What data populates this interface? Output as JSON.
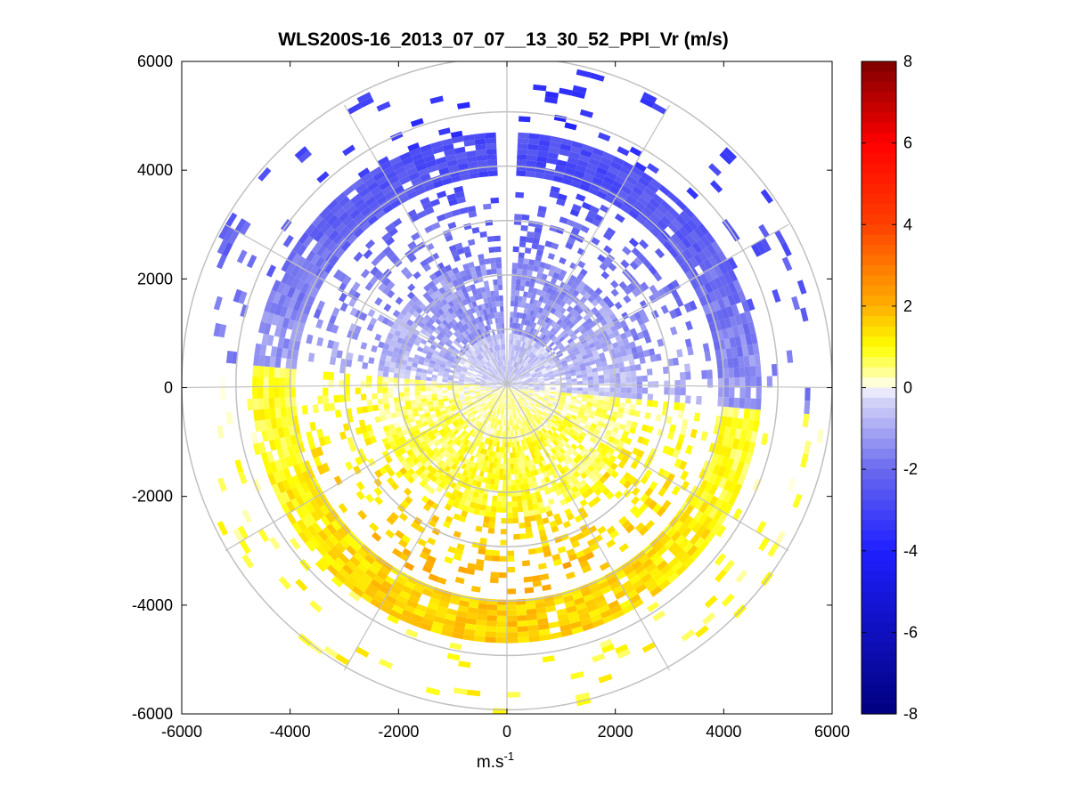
{
  "chart_data": {
    "type": "heatmap",
    "subtype": "polar-ppi",
    "title": "WLS200S-16_2013_07_07__13_30_52_PPI_Vr (m/s)",
    "xlabel": "m.s",
    "xlabel_sup": "-1",
    "ylabel": "",
    "xlim": [
      -6000,
      6000
    ],
    "ylim": [
      -6000,
      6000
    ],
    "xticks": [
      -6000,
      -4000,
      -2000,
      0,
      2000,
      4000,
      6000
    ],
    "yticks": [
      6000,
      4000,
      2000,
      0,
      -2000,
      -4000,
      -6000
    ],
    "xtick_labels": [
      "-6000",
      "-4000",
      "-2000",
      "0",
      "2000",
      "4000",
      "6000"
    ],
    "ytick_labels": [
      "6000",
      "4000",
      "2000",
      "0",
      "-2000",
      "-4000",
      "-6000"
    ],
    "grid_ring_radii": [
      1000,
      2000,
      3000,
      4000,
      5000,
      6000
    ],
    "grid_spoke_angles_deg": [
      0,
      30,
      60,
      90,
      120,
      150,
      180,
      210,
      240,
      270,
      300,
      330
    ],
    "colorbar": {
      "range": [
        -8,
        8
      ],
      "ticks": [
        8,
        6,
        4,
        2,
        0,
        -2,
        -4,
        -6,
        -8
      ],
      "tick_labels": [
        "8",
        "6",
        "4",
        "2",
        "0",
        "-2",
        "-4",
        "-6",
        "-8"
      ],
      "colormap_stops": [
        {
          "v": -8,
          "color": "#00007f"
        },
        {
          "v": -4,
          "color": "#1f1fff"
        },
        {
          "v": -2,
          "color": "#6a6aef"
        },
        {
          "v": -0.2,
          "color": "#dcdcf8"
        },
        {
          "v": 0,
          "color": "#ffffff"
        },
        {
          "v": 0.2,
          "color": "#ffffc0"
        },
        {
          "v": 1,
          "color": "#ffff00"
        },
        {
          "v": 2,
          "color": "#ffb000"
        },
        {
          "v": 4,
          "color": "#ff4000"
        },
        {
          "v": 6,
          "color": "#ff0000"
        },
        {
          "v": 8,
          "color": "#7f0000"
        }
      ]
    },
    "data_description": "Radial velocity Vr (m/s) on a polar grid; range gates 100-6000 m, azimuth beams every 2 deg",
    "data_model": {
      "bands": [
        {
          "r": [
            0,
            1000
          ],
          "north_half_vr": -0.6,
          "south_half_vr": 0.4,
          "coverage": 1.0
        },
        {
          "r": [
            1000,
            2400
          ],
          "north_half_vr": -1.5,
          "south_half_vr": 0.9,
          "coverage": 0.85
        },
        {
          "r": [
            2400,
            3400
          ],
          "north_half_vr": -2.2,
          "south_half_vr": 1.6,
          "coverage": 0.35
        },
        {
          "r": [
            3400,
            3800
          ],
          "north_half_vr": -2.8,
          "south_half_vr": 2.0,
          "coverage": 0.25
        },
        {
          "r": [
            3900,
            4700
          ],
          "north_half_vr": -2.8,
          "south_half_vr": 1.6,
          "coverage": 0.95
        },
        {
          "r": [
            4700,
            6000
          ],
          "north_half_vr": -3.5,
          "south_half_vr": 1.0,
          "coverage": 0.08
        }
      ],
      "zero_crossing_azimuth_deg": [
        95,
        265
      ],
      "range_gate_m": 100,
      "beam_width_deg": 2.5
    }
  }
}
